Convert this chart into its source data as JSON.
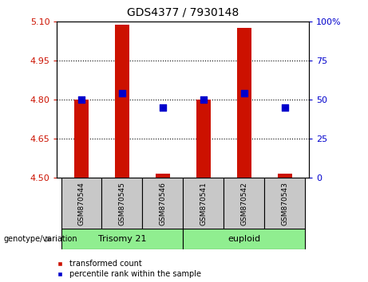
{
  "title": "GDS4377 / 7930148",
  "samples": [
    "GSM870544",
    "GSM870545",
    "GSM870546",
    "GSM870541",
    "GSM870542",
    "GSM870543"
  ],
  "transformed_count": [
    4.8,
    5.085,
    4.515,
    4.8,
    5.075,
    4.515
  ],
  "percentile_rank": [
    50,
    54,
    45,
    50,
    54,
    45
  ],
  "ylim_left": [
    4.5,
    5.1
  ],
  "ylim_right": [
    0,
    100
  ],
  "yticks_left": [
    4.5,
    4.65,
    4.8,
    4.95,
    5.1
  ],
  "yticks_right": [
    0,
    25,
    50,
    75,
    100
  ],
  "hlines": [
    4.65,
    4.8,
    4.95
  ],
  "bar_color": "#CC1100",
  "point_color": "#0000CC",
  "bar_bottom": 4.5,
  "bar_width": 0.35,
  "point_size": 40,
  "legend_red_label": "transformed count",
  "legend_blue_label": "percentile rank within the sample",
  "genotype_label": "genotype/variation",
  "group_label_1": "Trisomy 21",
  "group_label_2": "euploid",
  "tick_color_left": "#CC1100",
  "tick_color_right": "#0000CC",
  "bg_color_plot": "#FFFFFF",
  "bg_color_sample": "#C8C8C8",
  "group_color": "#90EE90"
}
